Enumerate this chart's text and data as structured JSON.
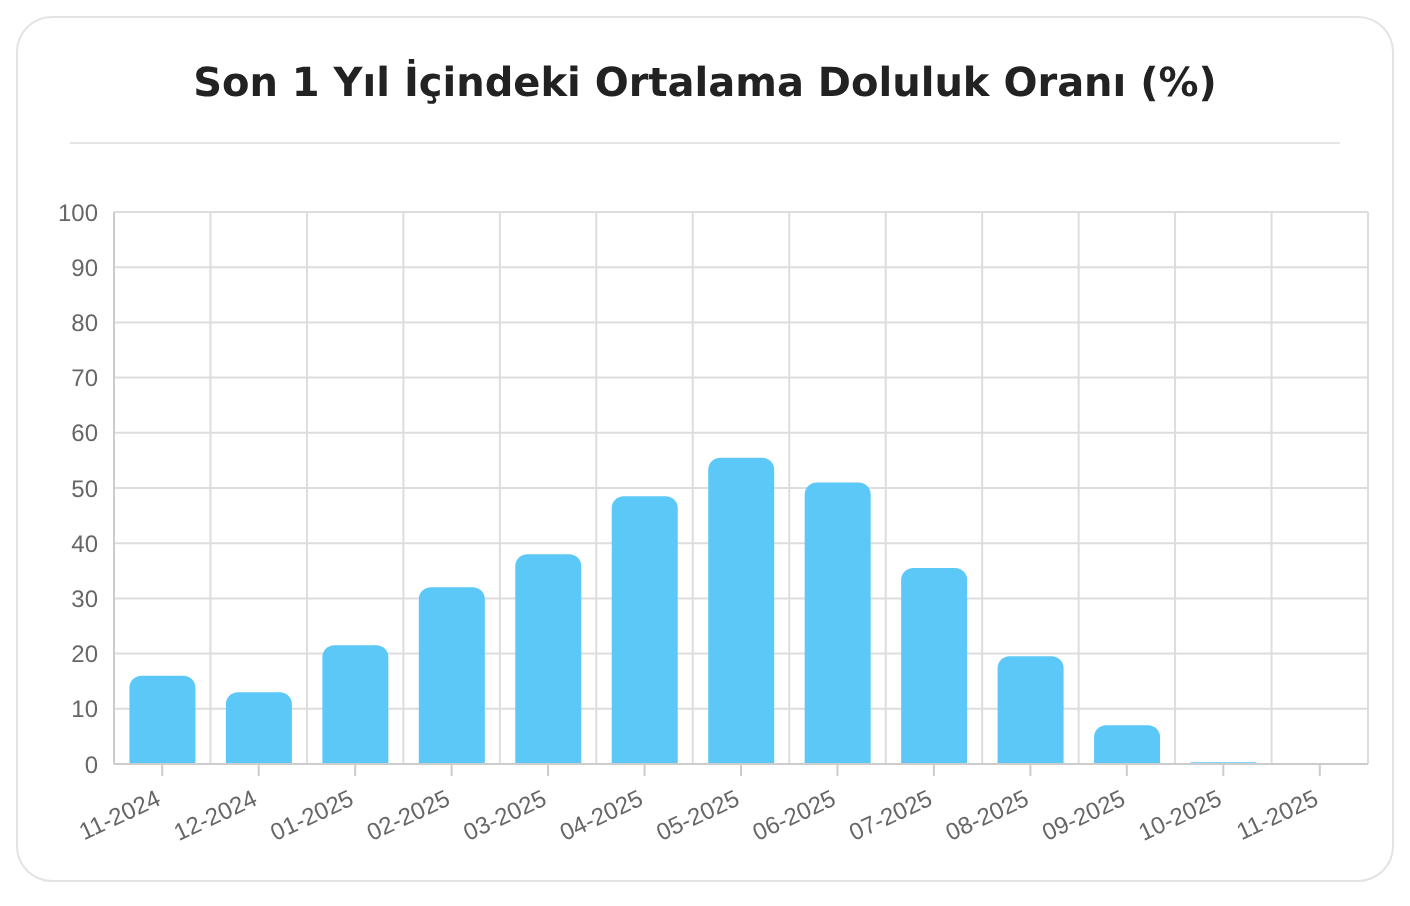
{
  "chart_data": {
    "type": "bar",
    "title": "Son 1 Yıl İçindeki Ortalama Doluluk Oranı (%)",
    "categories": [
      "11-2024",
      "12-2024",
      "01-2025",
      "02-2025",
      "03-2025",
      "04-2025",
      "05-2025",
      "06-2025",
      "07-2025",
      "08-2025",
      "09-2025",
      "10-2025",
      "11-2025"
    ],
    "values": [
      16,
      13,
      21.5,
      32,
      38,
      48.5,
      55.5,
      51,
      35.5,
      19.5,
      7,
      0.3,
      0
    ],
    "color": "#5bc8f8",
    "ylim": [
      0,
      100
    ],
    "yticks": [
      0,
      10,
      20,
      30,
      40,
      50,
      60,
      70,
      80,
      90,
      100
    ],
    "grid": true
  }
}
